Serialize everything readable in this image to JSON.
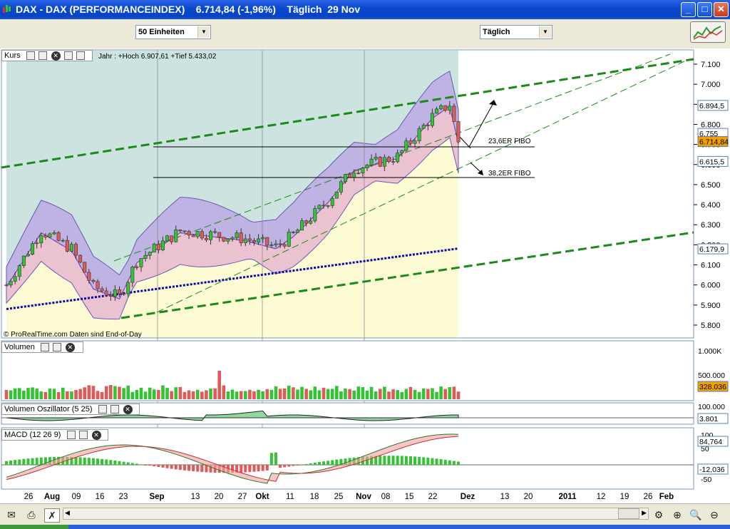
{
  "window": {
    "title": "DAX - DAX (PERFORMANCEINDEX)    6.714,84 (-1,96%)    Täglich  29 Nov",
    "min_label": "_",
    "max_label": "□",
    "close_label": "✕"
  },
  "toolbar": {
    "units_select": "50 Einheiten",
    "period_select": "Täglich"
  },
  "price_panel": {
    "label": "Kurs",
    "info": "Jahr : +Hoch 6.907,61 +Tief 5.433,02",
    "copyright": "© ProRealTime.com  Daten sind End-of-Day",
    "fibo_236": "23,6ER FIBO",
    "fibo_382": "38,2ER FIBO",
    "y_ticks": [
      "7.100",
      "7.000",
      "6.900",
      "6.800",
      "6.700",
      "6.600",
      "6.500",
      "6.400",
      "6.300",
      "6.200",
      "6.100",
      "6.000",
      "5.900",
      "5.800"
    ],
    "y_values": [
      7100,
      7000,
      6900,
      6800,
      6700,
      6600,
      6500,
      6400,
      6300,
      6200,
      6100,
      6000,
      5900,
      5800
    ],
    "tag_upper": "6.894,5",
    "tag_mid": "6.755",
    "tag_last": "6.714,84",
    "tag_lower": "6.615,5",
    "tag_ma": "6.179,9"
  },
  "volume_panel": {
    "label": "Volumen",
    "y_ticks": [
      "1.000K",
      "500.000"
    ],
    "tag_last": "328.036"
  },
  "osc_panel": {
    "label": "Volumen Oszillator (5 25)",
    "y_ticks": [
      "100.000"
    ],
    "tag_last": "3.801"
  },
  "macd_panel": {
    "label": "MACD (12 26 9)",
    "y_ticks": [
      "100",
      "50",
      "-50"
    ],
    "tag_upper": "84,764",
    "tag_lower": "-12,036"
  },
  "x_axis": {
    "labels": [
      "26",
      "Aug",
      "09",
      "16",
      "23",
      "Sep",
      "13",
      "20",
      "27",
      "Okt",
      "11",
      "18",
      "25",
      "Nov",
      "08",
      "15",
      "22",
      "Dez",
      "13",
      "20",
      "2011",
      "12",
      "19",
      "26",
      "Feb"
    ],
    "bold": [
      "Aug",
      "Sep",
      "Okt",
      "Nov",
      "Dez",
      "2011",
      "Feb"
    ]
  },
  "colors": {
    "title_bg": "#0a4ad0",
    "bull": "#35c335",
    "bear": "#e05a5a",
    "ma": "#0b0ba8",
    "trend": "#1a8a1a",
    "tag_last_bg": "#f0a000"
  },
  "chart_data": {
    "type": "candlestick",
    "series_count": 105,
    "last_close": 6714.84,
    "change_pct": -1.96,
    "year_high": 6907.61,
    "year_low": 5433.02,
    "last_volume": 328036,
    "ma_last": 6179.9,
    "macd_last": 84.764,
    "macd_hist_last": -12.036,
    "fib_levels": {
      "23.6": 6680,
      "38.2": 6590
    },
    "bollinger_upper_last": 6894.5,
    "bollinger_lower_last": 6615.5,
    "ylim": [
      5750,
      7150
    ]
  }
}
